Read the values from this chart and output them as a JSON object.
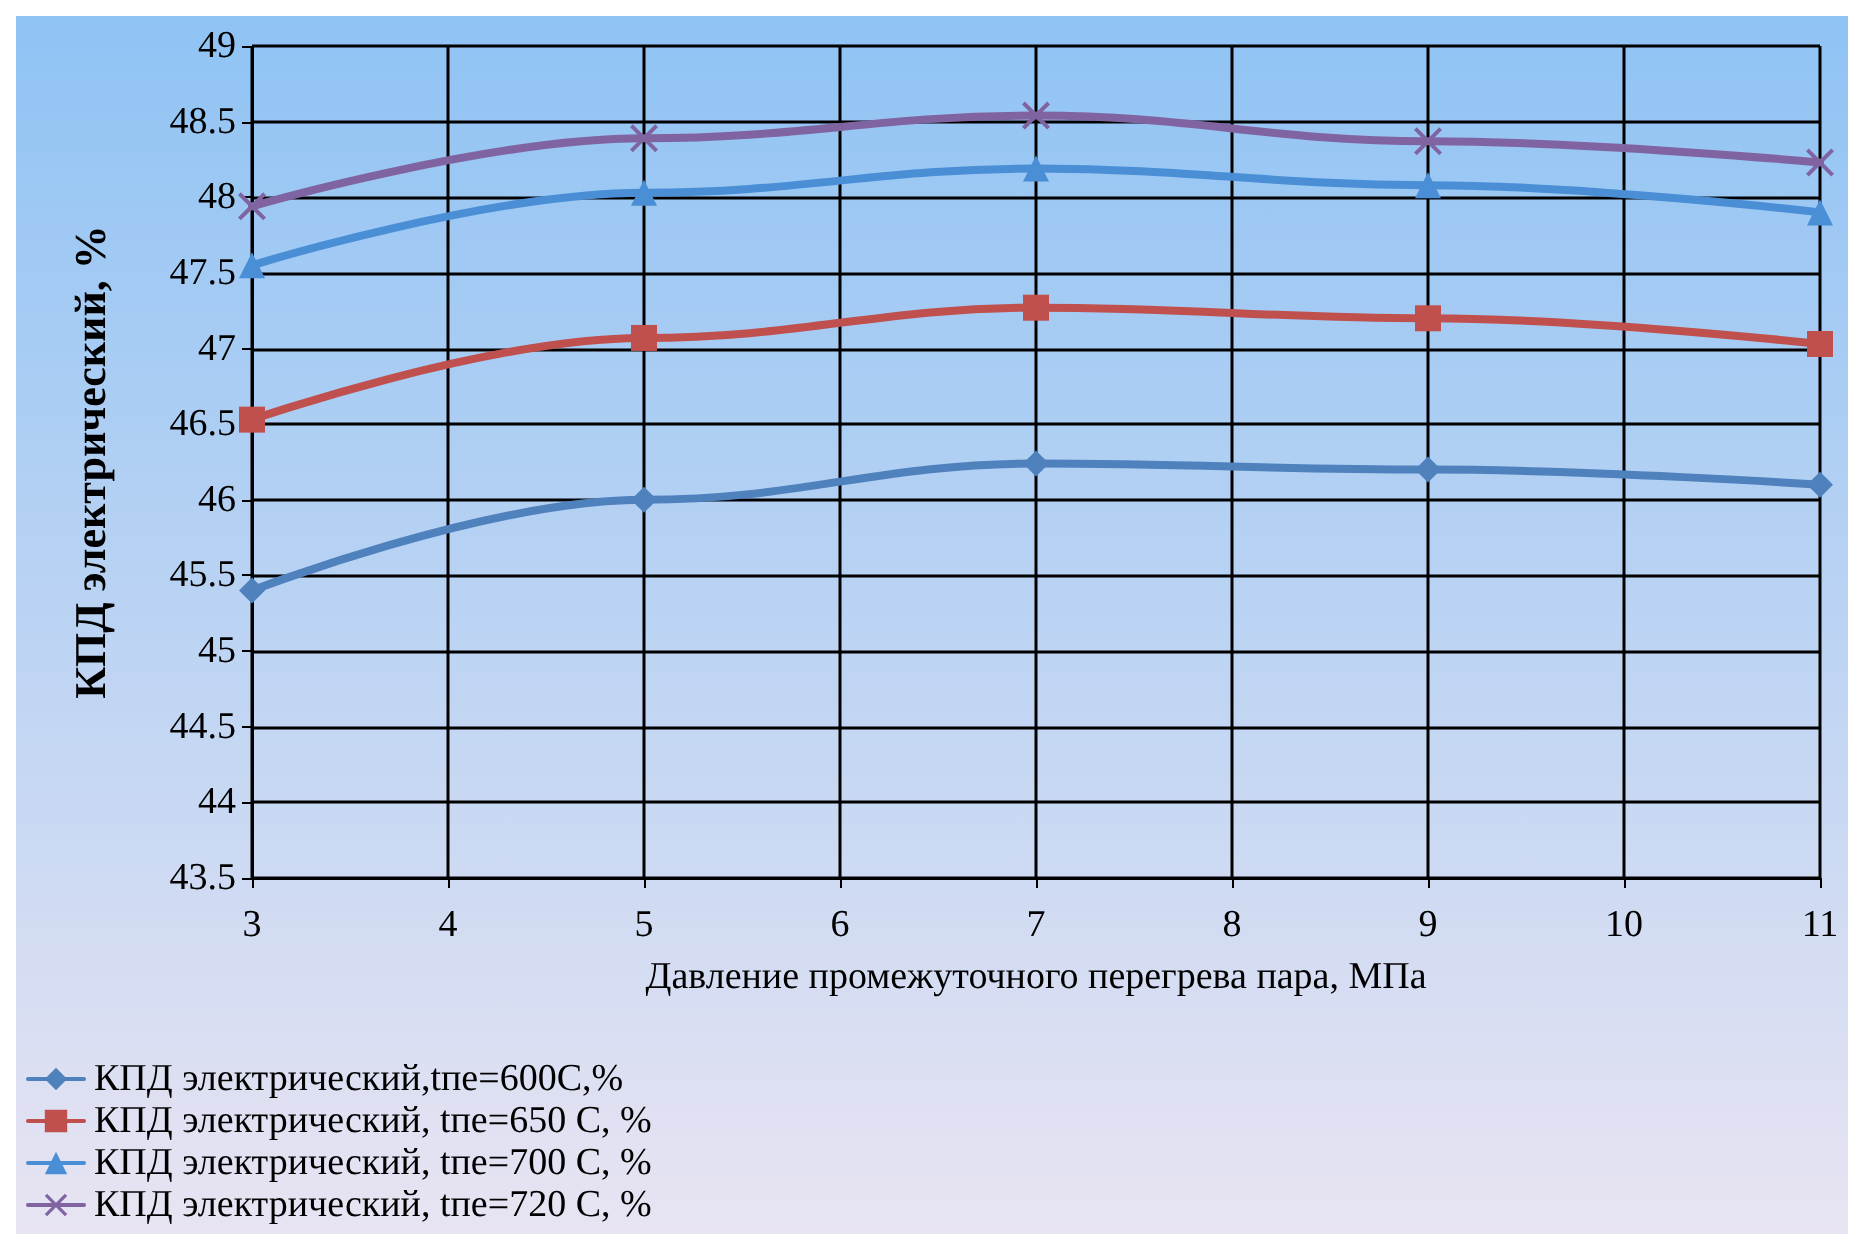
{
  "chart_data": {
    "type": "line",
    "xlabel": "Давление промежуточного перегрева пара, МПа",
    "ylabel": "КПД электрический, %",
    "x": [
      3,
      5,
      7,
      9,
      11
    ],
    "xlim": [
      3,
      11
    ],
    "xticks": [
      3,
      4,
      5,
      6,
      7,
      8,
      9,
      10,
      11
    ],
    "ylim": [
      43.5,
      49
    ],
    "yticks": [
      43.5,
      44,
      44.5,
      45,
      45.5,
      46,
      46.5,
      47,
      47.5,
      48,
      48.5,
      49
    ],
    "grid": true,
    "legend": "bottom left",
    "line_style": "solid",
    "series": [
      {
        "name": "КПД электрический,tпе=600С,%",
        "color": "#4f81bd",
        "marker": "diamond",
        "values": [
          45.4,
          46.0,
          46.24,
          46.2,
          46.1
        ]
      },
      {
        "name": "КПД электрический, tпе=650 С, %",
        "color": "#c0504d",
        "marker": "square",
        "values": [
          46.53,
          47.07,
          47.27,
          47.2,
          47.03
        ]
      },
      {
        "name": "КПД электрический, tпе=700 С, %",
        "color": "#4a8fd6",
        "marker": "triangle",
        "values": [
          47.55,
          48.03,
          48.19,
          48.08,
          47.9
        ]
      },
      {
        "name": "КПД электрический, tпе=720 С, %",
        "color": "#8064a2",
        "marker": "cross",
        "values": [
          47.94,
          48.39,
          48.54,
          48.37,
          48.23
        ]
      }
    ]
  }
}
